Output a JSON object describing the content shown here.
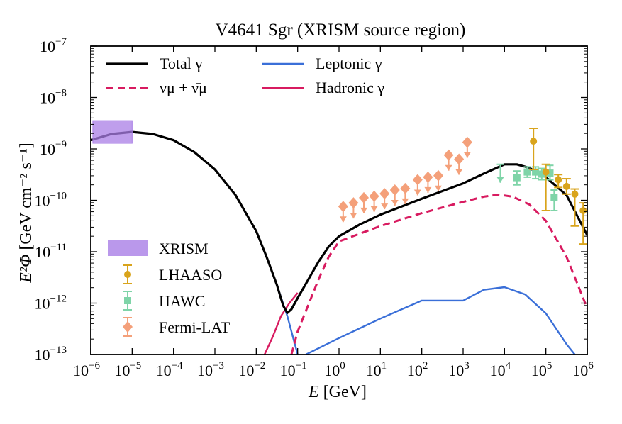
{
  "chart_data": {
    "type": "line",
    "title": "V4641 Sgr (XRISM source region)",
    "xlabel_var": "E",
    "xlabel_unit": " [GeV]",
    "ylabel_sym": "E²Φ",
    "ylabel_unit": " [GeV cm⁻² s⁻¹]",
    "x_log_range": [
      -6,
      6
    ],
    "y_log_range": [
      -13,
      -7
    ],
    "x_ticks": [
      {
        "base": "10",
        "exp": "−6",
        "value": -6
      },
      {
        "base": "10",
        "exp": "−5",
        "value": -5
      },
      {
        "base": "10",
        "exp": "−4",
        "value": -4
      },
      {
        "base": "10",
        "exp": "−3",
        "value": -3
      },
      {
        "base": "10",
        "exp": "−2",
        "value": -2
      },
      {
        "base": "10",
        "exp": "−1",
        "value": -1
      },
      {
        "base": "10",
        "exp": "0",
        "value": 0
      },
      {
        "base": "10",
        "exp": "1",
        "value": 1
      },
      {
        "base": "10",
        "exp": "2",
        "value": 2
      },
      {
        "base": "10",
        "exp": "3",
        "value": 3
      },
      {
        "base": "10",
        "exp": "4",
        "value": 4
      },
      {
        "base": "10",
        "exp": "5",
        "value": 5
      },
      {
        "base": "10",
        "exp": "6",
        "value": 6
      }
    ],
    "y_ticks": [
      {
        "base": "10",
        "exp": "−13",
        "value": -13
      },
      {
        "base": "10",
        "exp": "−12",
        "value": -12
      },
      {
        "base": "10",
        "exp": "−11",
        "value": -11
      },
      {
        "base": "10",
        "exp": "−10",
        "value": -10
      },
      {
        "base": "10",
        "exp": "−9",
        "value": -9
      },
      {
        "base": "10",
        "exp": "−8",
        "value": -8
      },
      {
        "base": "10",
        "exp": "−7",
        "value": -7
      }
    ],
    "legend_top": [
      {
        "key": "total",
        "label": "Total γ"
      },
      {
        "key": "nu",
        "label": "νμ + ν̄μ"
      },
      {
        "key": "lep",
        "label": "Leptonic γ"
      },
      {
        "key": "had",
        "label": "Hadronic γ"
      }
    ],
    "legend_bottom": [
      {
        "key": "xrism",
        "label": "XRISM"
      },
      {
        "key": "lhaaso",
        "label": "LHAASO"
      },
      {
        "key": "hawc",
        "label": "HAWC"
      },
      {
        "key": "fermi",
        "label": "Fermi-LAT"
      }
    ],
    "colors": {
      "total": "#000000",
      "nu": "#d81b60",
      "lep": "#3a6fd8",
      "had": "#d81b60",
      "xrism": "#a97ee6",
      "lhaaso": "#d9a41c",
      "hawc": "#7fd4a8",
      "fermi": "#f4a07a"
    },
    "series": [
      {
        "name": "Total γ",
        "key": "total",
        "style": "solid",
        "points": [
          [
            -6,
            -8.83
          ],
          [
            -5.5,
            -8.71
          ],
          [
            -5,
            -8.67
          ],
          [
            -4.5,
            -8.71
          ],
          [
            -4,
            -8.83
          ],
          [
            -3.5,
            -9.06
          ],
          [
            -3,
            -9.4
          ],
          [
            -2.5,
            -9.9
          ],
          [
            -2,
            -10.6
          ],
          [
            -1.75,
            -11.1
          ],
          [
            -1.5,
            -11.65
          ],
          [
            -1.35,
            -12.05
          ],
          [
            -1.25,
            -12.19
          ],
          [
            -1.15,
            -12.12
          ],
          [
            -1,
            -11.9
          ],
          [
            -0.75,
            -11.55
          ],
          [
            -0.5,
            -11.2
          ],
          [
            -0.25,
            -10.9
          ],
          [
            0,
            -10.7
          ],
          [
            0.5,
            -10.47
          ],
          [
            1,
            -10.28
          ],
          [
            2,
            -9.97
          ],
          [
            3,
            -9.67
          ],
          [
            3.5,
            -9.48
          ],
          [
            4,
            -9.3
          ],
          [
            4.3,
            -9.3
          ],
          [
            4.6,
            -9.37
          ],
          [
            5,
            -9.55
          ],
          [
            5.5,
            -9.9
          ],
          [
            6,
            -10.68
          ]
        ]
      },
      {
        "name": "νμ + ν̄μ",
        "key": "nu",
        "style": "dashed",
        "points": [
          [
            -1.15,
            -13.0
          ],
          [
            -1,
            -12.55
          ],
          [
            -0.75,
            -12.05
          ],
          [
            -0.5,
            -11.55
          ],
          [
            -0.25,
            -11.1
          ],
          [
            0,
            -10.8
          ],
          [
            0.5,
            -10.65
          ],
          [
            1,
            -10.5
          ],
          [
            2,
            -10.25
          ],
          [
            3,
            -10.03
          ],
          [
            3.5,
            -9.93
          ],
          [
            3.85,
            -9.89
          ],
          [
            4.2,
            -9.93
          ],
          [
            4.6,
            -10.08
          ],
          [
            5,
            -10.4
          ],
          [
            5.5,
            -11.1
          ],
          [
            6,
            -12.1
          ]
        ]
      },
      {
        "name": "Hadronic γ",
        "key": "had",
        "style": "solid",
        "points": [
          [
            -1.8,
            -13.0
          ],
          [
            -1.6,
            -12.65
          ],
          [
            -1.4,
            -12.25
          ],
          [
            -1.2,
            -12.0
          ],
          [
            -1,
            -11.8
          ]
        ]
      },
      {
        "name": "Leptonic γ",
        "key": "lep",
        "style": "solid",
        "points": [
          [
            -1.75,
            -11.1
          ],
          [
            -1.5,
            -11.65
          ],
          [
            -1.25,
            -12.25
          ],
          [
            -1.1,
            -12.7
          ],
          [
            -1,
            -13.0
          ]
        ]
      },
      {
        "name": "Leptonic γ",
        "key": "lep",
        "style": "solid",
        "points": [
          [
            -0.8,
            -13.0
          ],
          [
            0,
            -12.68
          ],
          [
            1,
            -12.3
          ],
          [
            2,
            -11.95
          ],
          [
            3,
            -11.95
          ],
          [
            3.5,
            -11.74
          ],
          [
            4,
            -11.69
          ],
          [
            4.5,
            -11.83
          ],
          [
            5,
            -12.2
          ],
          [
            5.5,
            -12.8
          ],
          [
            5.7,
            -13.0
          ]
        ]
      }
    ],
    "xrism": {
      "xmin": -5.95,
      "xmax": -5.0,
      "ymin": -8.89,
      "ymax": -8.45
    },
    "fermi": [
      {
        "x": 0.1,
        "y": -10.12
      },
      {
        "x": 0.35,
        "y": -10.05
      },
      {
        "x": 0.6,
        "y": -9.95
      },
      {
        "x": 0.85,
        "y": -9.92
      },
      {
        "x": 1.1,
        "y": -9.87
      },
      {
        "x": 1.35,
        "y": -9.8
      },
      {
        "x": 1.6,
        "y": -9.77
      },
      {
        "x": 1.9,
        "y": -9.6
      },
      {
        "x": 2.15,
        "y": -9.55
      },
      {
        "x": 2.4,
        "y": -9.52
      },
      {
        "x": 2.65,
        "y": -9.12
      },
      {
        "x": 2.9,
        "y": -9.2
      },
      {
        "x": 3.1,
        "y": -8.87
      }
    ],
    "hawc": [
      {
        "x": 3.9,
        "y": -9.3,
        "ul": true
      },
      {
        "x": 4.3,
        "y": -9.56,
        "lo": -9.7,
        "hi": -9.43
      },
      {
        "x": 4.55,
        "y": -9.45,
        "lo": -9.55,
        "hi": -9.35
      },
      {
        "x": 4.75,
        "y": -9.45,
        "lo": -9.58,
        "hi": -9.35
      },
      {
        "x": 4.9,
        "y": -9.49,
        "lo": -9.6,
        "hi": -9.38
      },
      {
        "x": 5.1,
        "y": -9.47,
        "lo": -9.6,
        "hi": -9.32
      },
      {
        "x": 5.2,
        "y": -9.94,
        "lo": -10.2,
        "hi": -9.8
      }
    ],
    "lhaaso": [
      {
        "x": 4.7,
        "y": -8.85,
        "lo": -9.4,
        "hi": -8.6
      },
      {
        "x": 5.0,
        "y": -9.45,
        "lo": -10.2,
        "hi": -9.3
      },
      {
        "x": 5.3,
        "y": -9.6,
        "lo": -9.75,
        "hi": -9.5
      },
      {
        "x": 5.5,
        "y": -9.73,
        "lo": -9.88,
        "hi": -9.58
      },
      {
        "x": 5.7,
        "y": -9.88,
        "lo": -10.5,
        "hi": -9.78
      },
      {
        "x": 5.9,
        "y": -10.2,
        "lo": -10.85,
        "hi": -10.05
      }
    ]
  }
}
